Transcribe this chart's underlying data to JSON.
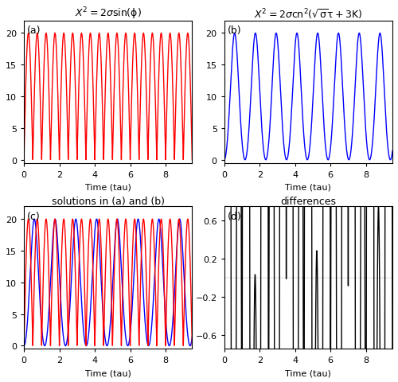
{
  "sigma": 10,
  "tau_start": 0,
  "tau_end": 9.5,
  "n_points": 10000,
  "red_color": "#FF0000",
  "blue_color": "#0000FF",
  "black_color": "#000000",
  "bg_color": "#FFFFFF",
  "title_a": "$X^2=2\\sigma\\sin(\\phi)$",
  "title_b": "$X^2=2\\sigma cn^2(\\sqrt{\\sigma}\\tau+3K)$",
  "title_c": "solutions in (a) and (b)",
  "title_d": "differences",
  "xlabel": "Time (tau)",
  "ylim_abc": [
    -0.5,
    22
  ],
  "yticks_abc": [
    0,
    5,
    10,
    15,
    20
  ],
  "xlim": [
    0,
    9.5
  ],
  "xlim_plot": [
    0,
    9.5
  ],
  "xticks": [
    0,
    2,
    4,
    6,
    8
  ],
  "ylim_d": [
    -0.75,
    0.75
  ],
  "yticks_d": [
    -0.6,
    -0.2,
    0.2,
    0.6
  ],
  "label_a": "(a)",
  "label_b": "(b)",
  "label_c": "(c)",
  "label_d": "(d)",
  "linewidth": 1.0,
  "omega_a": 6.2832
}
